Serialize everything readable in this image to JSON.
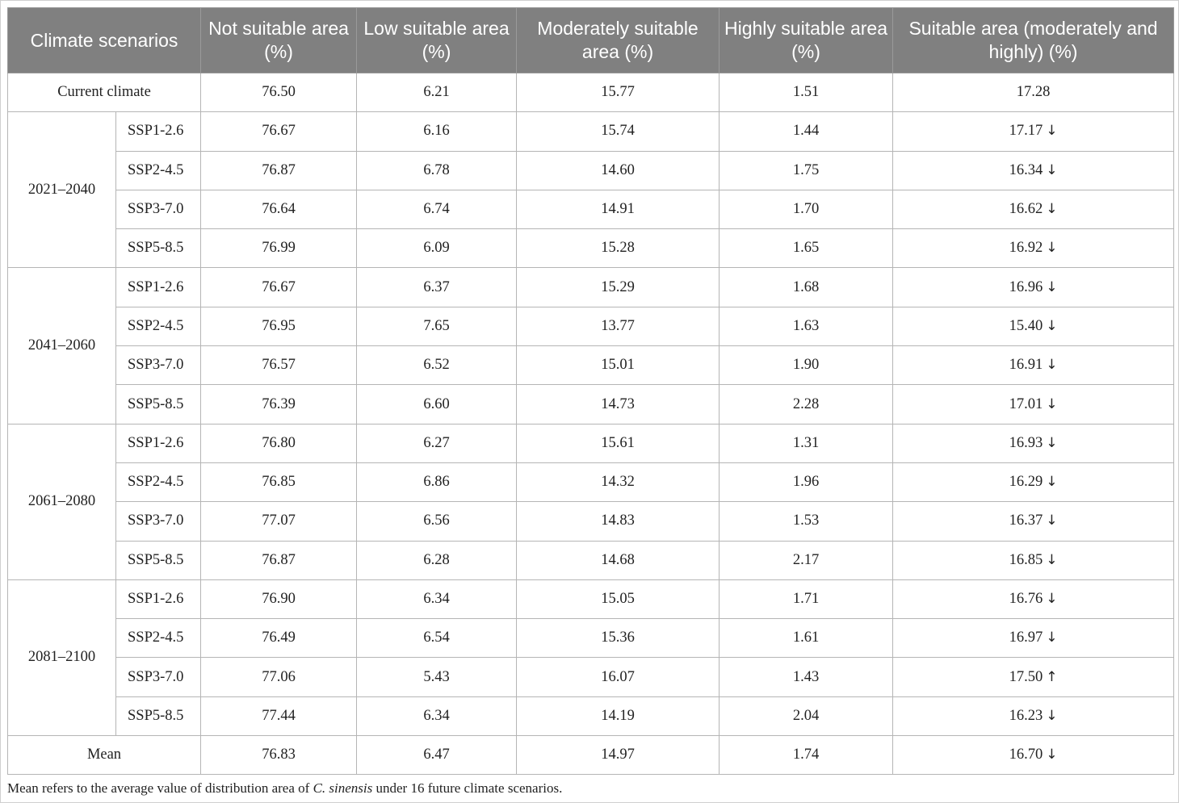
{
  "header": {
    "col0": "Climate scenarios",
    "col1": "Not suitable area (%)",
    "col2": "Low suitable area (%)",
    "col3": "Moderately suitable area (%)",
    "col4": "Highly suitable area (%)",
    "col5": "Suitable area (moderately and highly) (%)"
  },
  "current": {
    "label": "Current climate",
    "values": [
      "76.50",
      "6.21",
      "15.77",
      "1.51",
      "17.28"
    ]
  },
  "periods": [
    {
      "label": "2021–2040",
      "rows": [
        {
          "scenario": "SSP1-2.6",
          "values": [
            "76.67",
            "6.16",
            "15.74",
            "1.44",
            "17.17"
          ],
          "trend": "↓"
        },
        {
          "scenario": "SSP2-4.5",
          "values": [
            "76.87",
            "6.78",
            "14.60",
            "1.75",
            "16.34"
          ],
          "trend": "↓"
        },
        {
          "scenario": "SSP3-7.0",
          "values": [
            "76.64",
            "6.74",
            "14.91",
            "1.70",
            "16.62"
          ],
          "trend": "↓"
        },
        {
          "scenario": "SSP5-8.5",
          "values": [
            "76.99",
            "6.09",
            "15.28",
            "1.65",
            "16.92"
          ],
          "trend": "↓"
        }
      ]
    },
    {
      "label": "2041–2060",
      "rows": [
        {
          "scenario": "SSP1-2.6",
          "values": [
            "76.67",
            "6.37",
            "15.29",
            "1.68",
            "16.96"
          ],
          "trend": "↓"
        },
        {
          "scenario": "SSP2-4.5",
          "values": [
            "76.95",
            "7.65",
            "13.77",
            "1.63",
            "15.40"
          ],
          "trend": "↓"
        },
        {
          "scenario": "SSP3-7.0",
          "values": [
            "76.57",
            "6.52",
            "15.01",
            "1.90",
            "16.91"
          ],
          "trend": "↓"
        },
        {
          "scenario": "SSP5-8.5",
          "values": [
            "76.39",
            "6.60",
            "14.73",
            "2.28",
            "17.01"
          ],
          "trend": "↓"
        }
      ]
    },
    {
      "label": "2061–2080",
      "rows": [
        {
          "scenario": "SSP1-2.6",
          "values": [
            "76.80",
            "6.27",
            "15.61",
            "1.31",
            "16.93"
          ],
          "trend": "↓"
        },
        {
          "scenario": "SSP2-4.5",
          "values": [
            "76.85",
            "6.86",
            "14.32",
            "1.96",
            "16.29"
          ],
          "trend": "↓"
        },
        {
          "scenario": "SSP3-7.0",
          "values": [
            "77.07",
            "6.56",
            "14.83",
            "1.53",
            "16.37"
          ],
          "trend": "↓"
        },
        {
          "scenario": "SSP5-8.5",
          "values": [
            "76.87",
            "6.28",
            "14.68",
            "2.17",
            "16.85"
          ],
          "trend": "↓"
        }
      ]
    },
    {
      "label": "2081–2100",
      "rows": [
        {
          "scenario": "SSP1-2.6",
          "values": [
            "76.90",
            "6.34",
            "15.05",
            "1.71",
            "16.76"
          ],
          "trend": "↓"
        },
        {
          "scenario": "SSP2-4.5",
          "values": [
            "76.49",
            "6.54",
            "15.36",
            "1.61",
            "16.97"
          ],
          "trend": "↓"
        },
        {
          "scenario": "SSP3-7.0",
          "values": [
            "77.06",
            "5.43",
            "16.07",
            "1.43",
            "17.50"
          ],
          "trend": "↑"
        },
        {
          "scenario": "SSP5-8.5",
          "values": [
            "77.44",
            "6.34",
            "14.19",
            "2.04",
            "16.23"
          ],
          "trend": "↓"
        }
      ]
    }
  ],
  "mean": {
    "label": "Mean",
    "values": [
      "76.83",
      "6.47",
      "14.97",
      "1.74",
      "16.70"
    ],
    "trend": "↓"
  },
  "footnote": {
    "before": "Mean refers to the average value of distribution area of ",
    "species": "C. sinensis",
    "after": " under 16 future climate scenarios."
  }
}
